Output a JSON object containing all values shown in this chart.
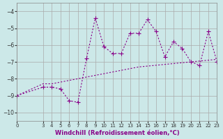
{
  "xlabel": "Windchill (Refroidissement éolien,°C)",
  "ylabel": "",
  "bg_color": "#cce8e8",
  "grid_color": "#aaaaaa",
  "line_color": "#880088",
  "marker": "+",
  "x_jagged": [
    0,
    3,
    4,
    5,
    6,
    7,
    8,
    9,
    10,
    11,
    12,
    13,
    14,
    15,
    16,
    17,
    18,
    19,
    20,
    21,
    22,
    23
  ],
  "y_jagged": [
    -9.0,
    -8.5,
    -8.5,
    -8.6,
    -9.3,
    -9.4,
    -6.8,
    -4.4,
    -6.1,
    -6.5,
    -6.5,
    -5.3,
    -5.3,
    -4.5,
    -5.2,
    -6.7,
    -5.8,
    -6.2,
    -7.0,
    -7.2,
    -5.2,
    -7.0
  ],
  "x_smooth": [
    0,
    3,
    4,
    5,
    6,
    7,
    8,
    9,
    10,
    11,
    12,
    13,
    14,
    15,
    16,
    17,
    18,
    19,
    20,
    21,
    22,
    23
  ],
  "y_smooth": [
    -9.0,
    -8.3,
    -8.3,
    -8.2,
    -8.1,
    -8.0,
    -7.9,
    -7.8,
    -7.7,
    -7.6,
    -7.5,
    -7.4,
    -7.3,
    -7.25,
    -7.2,
    -7.15,
    -7.1,
    -7.05,
    -7.0,
    -6.95,
    -6.9,
    -6.85
  ],
  "ylim": [
    -10.5,
    -3.5
  ],
  "yticks": [
    -10,
    -9,
    -8,
    -7,
    -6,
    -5,
    -4
  ],
  "xlim": [
    0,
    23
  ],
  "xticks": [
    0,
    3,
    4,
    5,
    6,
    7,
    8,
    9,
    10,
    11,
    12,
    13,
    14,
    15,
    16,
    17,
    18,
    19,
    20,
    21,
    22,
    23
  ]
}
